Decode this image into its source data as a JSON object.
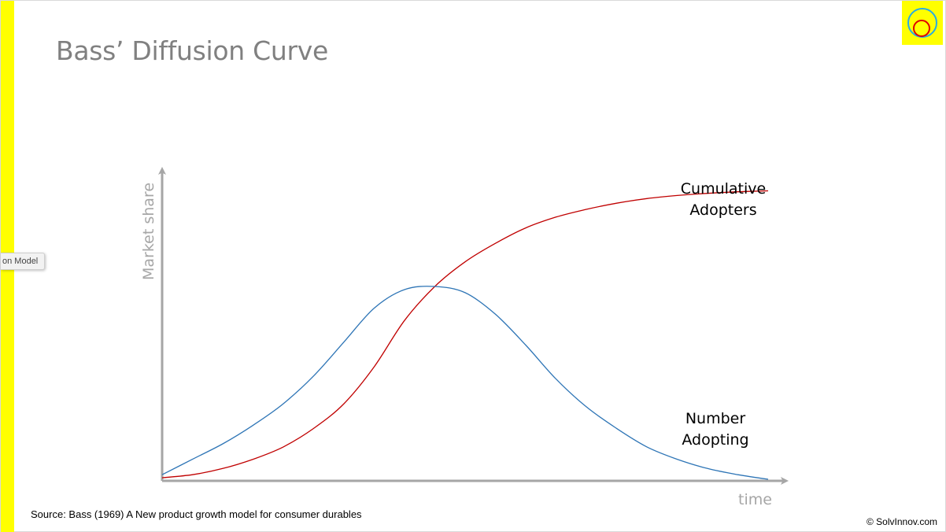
{
  "slide": {
    "title": "Bass’ Diffusion Curve",
    "source": "Source: Bass (1969) A New product growth model for consumer durables",
    "copyright": "© SolvInnov.com",
    "tooltip": "on Model",
    "accent_color": "#ffff00"
  },
  "logo": {
    "icon": "concentric-circles-logo",
    "outer_color": "#29abe2",
    "inner_color": "#e00000"
  },
  "chart_data": {
    "type": "line",
    "xlabel": "time",
    "ylabel": "Market share",
    "ticks": false,
    "grid": false,
    "x": [
      0,
      0.05,
      0.1,
      0.15,
      0.2,
      0.25,
      0.3,
      0.35,
      0.4,
      0.45,
      0.5,
      0.55,
      0.6,
      0.65,
      0.7,
      0.75,
      0.8,
      0.85,
      0.9,
      0.95,
      1.0
    ],
    "series": [
      {
        "name": "Cumulative Adopters",
        "color": "#c00000",
        "values": [
          0.01,
          0.02,
          0.04,
          0.07,
          0.11,
          0.17,
          0.25,
          0.37,
          0.52,
          0.63,
          0.71,
          0.77,
          0.82,
          0.855,
          0.88,
          0.9,
          0.915,
          0.925,
          0.932,
          0.937,
          0.94
        ]
      },
      {
        "name": "Number Adopting",
        "color": "#2e75b6",
        "values": [
          0.02,
          0.07,
          0.12,
          0.18,
          0.25,
          0.34,
          0.45,
          0.56,
          0.62,
          0.63,
          0.61,
          0.54,
          0.44,
          0.33,
          0.24,
          0.17,
          0.11,
          0.07,
          0.04,
          0.02,
          0.005
        ]
      }
    ]
  }
}
